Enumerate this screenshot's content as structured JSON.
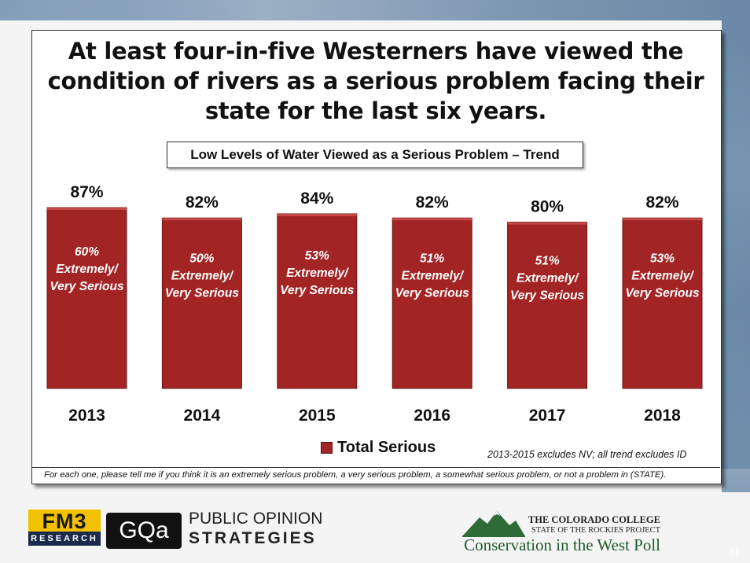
{
  "title": "At least four-in-five Westerners have viewed the condition of rivers as a serious problem facing their state for the last six years.",
  "subtitle": "Low Levels of Water Viewed as a Serious Problem – Trend",
  "chart_data": {
    "type": "bar",
    "categories": [
      "2013",
      "2014",
      "2015",
      "2016",
      "2017",
      "2018"
    ],
    "series": [
      {
        "name": "Total Serious",
        "values": [
          87,
          82,
          84,
          82,
          80,
          82
        ],
        "labels": [
          "87%",
          "82%",
          "84%",
          "82%",
          "80%",
          "82%"
        ]
      }
    ],
    "inner_labels": [
      [
        "60%",
        "Extremely/",
        "Very Serious"
      ],
      [
        "50%",
        "Extremely/",
        "Very Serious"
      ],
      [
        "53%",
        "Extremely/",
        "Very Serious"
      ],
      [
        "51%",
        "Extremely/",
        "Very Serious"
      ],
      [
        "51%",
        "Extremely/",
        "Very Serious"
      ],
      [
        "53%",
        "Extremely/",
        "Very Serious"
      ]
    ],
    "ylim": [
      0,
      100
    ],
    "bar_color": "#a32424",
    "legend": "bottom-center"
  },
  "legend_label": "Total Serious",
  "note": "2013-2015 excludes NV; all trend excludes ID",
  "question": "For each one, please tell me if you think it is an extremely serious problem, a very serious problem, a somewhat serious problem, or not a problem in (STATE).",
  "footer": {
    "fm3_top": "FM3",
    "fm3_bottom": "RESEARCH",
    "gqa_logo": "GQa",
    "pos_line1": "PUBLIC OPINION",
    "pos_line2": "STRATEGIES",
    "cc_line1": "THE COLORADO COLLEGE",
    "cc_line2": "STATE OF THE ROCKIES PROJECT",
    "cc_line3": "Conservation in the West Poll",
    "page_number": "61"
  }
}
